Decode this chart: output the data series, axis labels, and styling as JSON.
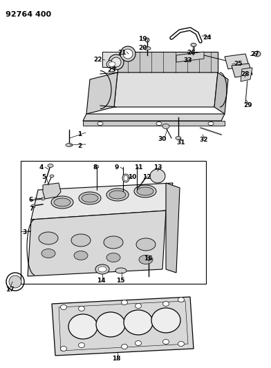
{
  "title": "92764 400",
  "bg_color": "#ffffff",
  "line_color": "#000000",
  "fig_width": 3.92,
  "fig_height": 5.33,
  "dpi": 100,
  "label_fontsize": 6.5,
  "title_fontsize": 8.0,
  "gray_fill": "#d8d8d8",
  "light_gray": "#eeeeee",
  "mid_gray": "#c8c8c8",
  "white": "#ffffff"
}
